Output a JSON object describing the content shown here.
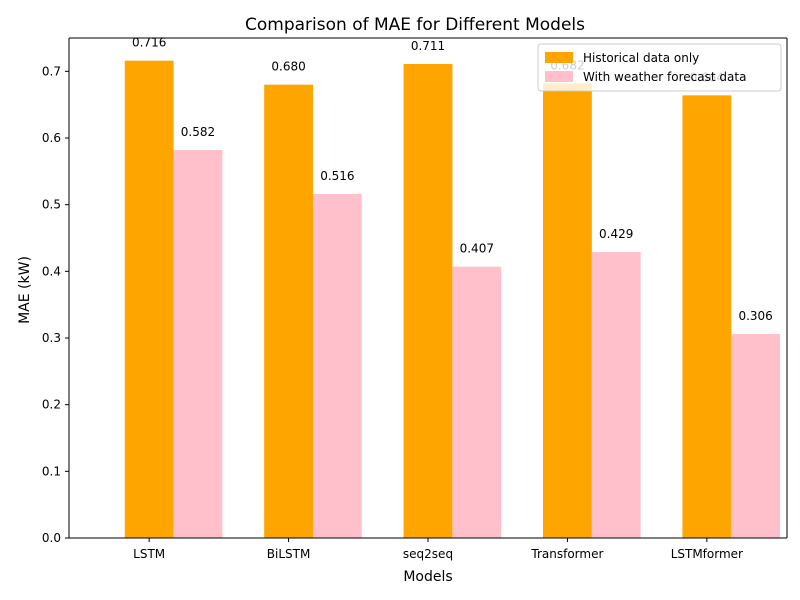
{
  "chart_data": {
    "type": "bar",
    "title": "Comparison of MAE for Different Models",
    "xlabel": "Models",
    "ylabel": "MAE (kW)",
    "categories": [
      "LSTM",
      "BiLSTM",
      "seq2seq",
      "Transformer",
      "LSTMformer"
    ],
    "ylim": [
      0,
      0.75
    ],
    "yticks": [
      0.0,
      0.1,
      0.2,
      0.3,
      0.4,
      0.5,
      0.6,
      0.7
    ],
    "ytick_labels": [
      "0.0",
      "0.1",
      "0.2",
      "0.3",
      "0.4",
      "0.5",
      "0.6",
      "0.7"
    ],
    "grid": false,
    "legend_position": "top-right",
    "series": [
      {
        "name": "Historical data only",
        "color": "#ffa500",
        "values": [
          0.716,
          0.68,
          0.711,
          0.682,
          0.664
        ],
        "labels": [
          "0.716",
          "0.680",
          "0.711",
          "0.682",
          "0.664"
        ]
      },
      {
        "name": "With weather forecast data",
        "color": "#ffc0cb",
        "values": [
          0.582,
          0.516,
          0.407,
          0.429,
          0.306
        ],
        "labels": [
          "0.582",
          "0.516",
          "0.407",
          "0.429",
          "0.306"
        ]
      }
    ]
  }
}
